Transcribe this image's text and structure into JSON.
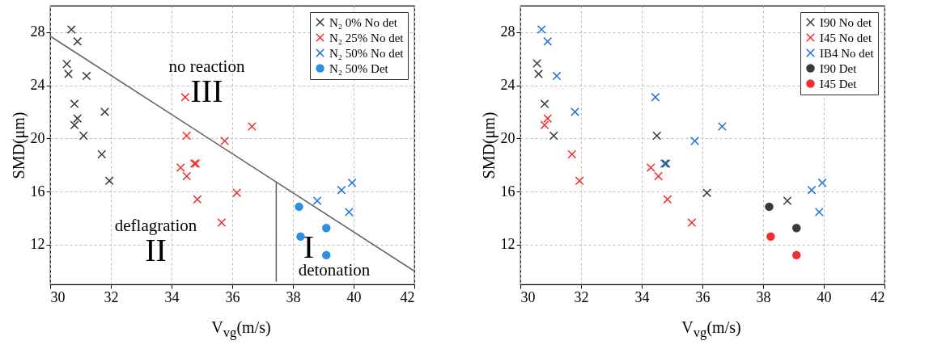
{
  "chart_data": [
    {
      "type": "scatter",
      "xlabel": "V$_{vg}$(m/s)",
      "ylabel": "SMD(μm)",
      "xlim": [
        30,
        42
      ],
      "ylim": [
        9,
        30
      ],
      "xticks": [
        30,
        32,
        34,
        36,
        38,
        40,
        42
      ],
      "yticks": [
        12,
        16,
        20,
        24,
        28
      ],
      "grid": true,
      "legend": "top right",
      "series": [
        {
          "name": "N₂ 0% No det",
          "color": "#3a3a3a",
          "marker": "cross",
          "x": [
            30.7,
            30.9,
            30.55,
            30.6,
            31.2,
            30.8,
            30.9,
            30.8,
            31.1,
            31.7,
            31.95,
            31.8
          ],
          "values": [
            28.2,
            27.3,
            25.6,
            24.85,
            24.7,
            22.6,
            21.5,
            21.0,
            20.2,
            18.8,
            16.8,
            22.0
          ]
        },
        {
          "name": "N₂ 25% No det",
          "color": "#f03030",
          "marker": "cross",
          "x": [
            34.45,
            34.5,
            35.75,
            36.65,
            34.3,
            34.5,
            34.75,
            34.8,
            34.85,
            36.15,
            35.65
          ],
          "values": [
            23.1,
            20.2,
            19.8,
            20.9,
            17.8,
            17.15,
            18.1,
            18.1,
            15.4,
            15.9,
            13.65
          ]
        },
        {
          "name": "N₂ 50% No det",
          "color": "#1f6fe0",
          "marker": "cross",
          "x": [
            38.8,
            39.6,
            39.95,
            39.85
          ],
          "values": [
            15.3,
            16.1,
            16.65,
            14.45
          ]
        },
        {
          "name": "N₂ 50% Det",
          "color": "#2c8fe0",
          "marker": "circle",
          "x": [
            38.2,
            38.25,
            39.1,
            39.1
          ],
          "values": [
            14.85,
            12.6,
            13.25,
            11.2
          ]
        },
        {
          "type": "line",
          "color": "#666666",
          "x": [
            30,
            42
          ],
          "values": [
            27.7,
            10.0
          ]
        },
        {
          "type": "line",
          "color": "#666666",
          "x": [
            37.45,
            37.45
          ],
          "values": [
            9.2,
            16.7
          ]
        }
      ],
      "annotations": [
        "no reaction",
        "III",
        "deflagration",
        "II",
        "I",
        "detonation"
      ]
    },
    {
      "type": "scatter",
      "xlabel": "V$_{vg}$(m/s)",
      "ylabel": "SMD(μm)",
      "xlim": [
        30,
        42
      ],
      "ylim": [
        9,
        30
      ],
      "xticks": [
        30,
        32,
        34,
        36,
        38,
        40,
        42
      ],
      "yticks": [
        12,
        16,
        20,
        24,
        28
      ],
      "grid": true,
      "legend": "top right",
      "series": [
        {
          "name": "I90 No det",
          "color": "#3a3a3a",
          "marker": "cross",
          "x": [
            30.55,
            30.6,
            30.8,
            31.1,
            34.5,
            34.8,
            36.15,
            38.8
          ],
          "values": [
            25.65,
            24.85,
            22.6,
            20.2,
            20.2,
            18.1,
            15.9,
            15.3
          ]
        },
        {
          "name": "I45 No det",
          "color": "#f03030",
          "marker": "cross",
          "x": [
            30.9,
            30.8,
            31.7,
            31.95,
            34.3,
            34.55,
            34.85,
            35.65
          ],
          "values": [
            21.5,
            21.0,
            18.8,
            16.8,
            17.8,
            17.15,
            15.4,
            13.65
          ]
        },
        {
          "name": "IB4 No det",
          "color": "#1f6fe0",
          "marker": "cross",
          "x": [
            30.7,
            30.9,
            31.2,
            31.8,
            34.45,
            34.75,
            35.75,
            36.65,
            39.6,
            39.95,
            39.85
          ],
          "values": [
            28.2,
            27.3,
            24.7,
            22.0,
            23.1,
            18.1,
            19.8,
            20.9,
            16.1,
            16.65,
            14.45
          ]
        },
        {
          "name": "I90 Det",
          "color": "#3a3a3a",
          "marker": "circle",
          "x": [
            38.2,
            39.1
          ],
          "values": [
            14.85,
            13.25
          ]
        },
        {
          "name": "I45 Det",
          "color": "#f03030",
          "marker": "circle",
          "x": [
            38.25,
            39.1
          ],
          "values": [
            12.6,
            11.2
          ]
        }
      ]
    }
  ]
}
